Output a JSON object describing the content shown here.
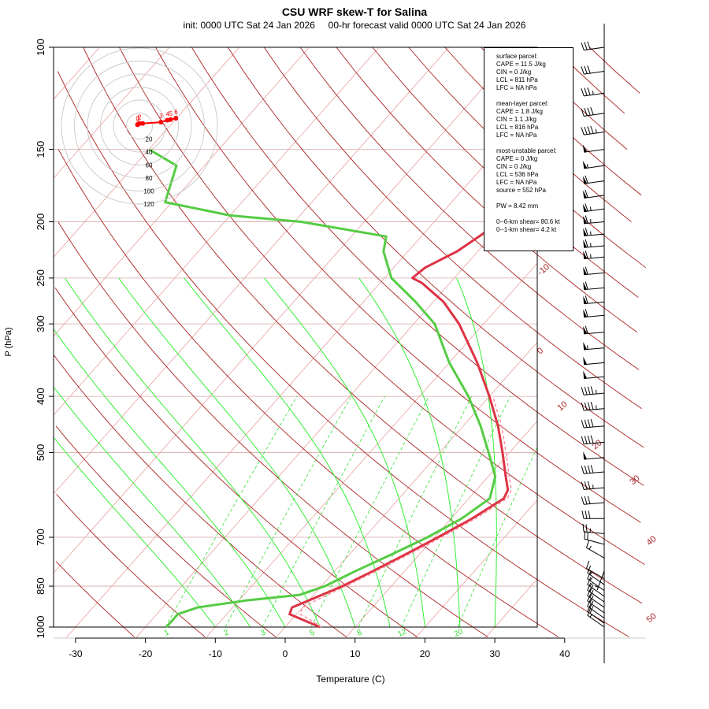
{
  "title": "CSU WRF skew-T for Salina",
  "subtitle": "init: 0000 UTC Sat 24 Jan 2026     00-hr forecast valid 0000 UTC Sat 24 Jan 2026",
  "legend": {
    "surface": [
      "surface parcel:",
      "CAPE = 11.5 J/kg",
      "CIN = 0 J/kg",
      "LCL = 811 hPa",
      "LFC = NA hPa"
    ],
    "mean_layer": [
      "mean-layer parcel:",
      "CAPE = 1.8 J/kg",
      "CIN = 1.1 J/kg",
      "LCL = 816 hPa",
      "LFC = NA hPa"
    ],
    "most_unstable": [
      "most-unstable parcel:",
      "CAPE = 0 J/kg",
      "CIN = 0 J/kg",
      "LCL = 536 hPa",
      "LFC = NA hPa",
      "source = 552 hPa"
    ],
    "pw": "PW =  8.42 mm",
    "shear": [
      "0--6-km shear= 80.6 kt",
      "0--1-km shear= 4.2 kt"
    ]
  },
  "colors": {
    "temperature": "#dd3344",
    "dewpoint": "#55cc44",
    "dry_adiabat": "#aa2222",
    "isotherm": "#e8a0a0",
    "moist_adiabat": "#33ee33",
    "mixing_ratio": "#33dd33",
    "hodograph": "#ff0000"
  },
  "chart_data": {
    "type": "line",
    "chart_kind": "skew-T log-P diagram",
    "xlabel": "Temperature (C)",
    "ylabel": "P (hPa)",
    "x_ticks": [
      -30,
      -20,
      -10,
      0,
      10,
      20,
      30,
      40
    ],
    "y_ticks": [
      100,
      150,
      200,
      250,
      300,
      400,
      500,
      700,
      850,
      1000
    ],
    "ylim": [
      1000,
      100
    ],
    "log_pressure_axis": true,
    "grid": true,
    "legend_placement": "top-right",
    "series": [
      {
        "name": "Temperature",
        "points": [
          [
            1000,
            5.0
          ],
          [
            975,
            2.0
          ],
          [
            950,
            -1.0
          ],
          [
            925,
            -1.5
          ],
          [
            900,
            0.0
          ],
          [
            850,
            3.0
          ],
          [
            800,
            5.5
          ],
          [
            750,
            8.0
          ],
          [
            700,
            10.5
          ],
          [
            650,
            13.0
          ],
          [
            600,
            15.0
          ],
          [
            580,
            14.5
          ],
          [
            550,
            12.5
          ],
          [
            500,
            9.0
          ],
          [
            450,
            5.0
          ],
          [
            400,
            0.0
          ],
          [
            350,
            -6.0
          ],
          [
            300,
            -13.5
          ],
          [
            275,
            -18.5
          ],
          [
            255,
            -24.0
          ],
          [
            250,
            -26.0
          ],
          [
            240,
            -25.5
          ],
          [
            225,
            -23.0
          ],
          [
            200,
            -20.5
          ],
          [
            180,
            -19.5
          ],
          [
            160,
            -19.0
          ],
          [
            150,
            -19.0
          ],
          [
            140,
            -20.0
          ],
          [
            130,
            -22.0
          ],
          [
            120,
            -24.0
          ],
          [
            110,
            -27.0
          ]
        ]
      },
      {
        "name": "Dewpoint",
        "points": [
          [
            1000,
            -17.0
          ],
          [
            975,
            -17.0
          ],
          [
            950,
            -17.0
          ],
          [
            925,
            -15.0
          ],
          [
            900,
            -9.0
          ],
          [
            880,
            -2.0
          ],
          [
            850,
            0.5
          ],
          [
            800,
            3.0
          ],
          [
            750,
            6.0
          ],
          [
            700,
            9.0
          ],
          [
            650,
            11.5
          ],
          [
            600,
            13.0
          ],
          [
            550,
            11.0
          ],
          [
            500,
            7.0
          ],
          [
            450,
            2.5
          ],
          [
            400,
            -3.0
          ],
          [
            350,
            -10.0
          ],
          [
            300,
            -17.0
          ],
          [
            275,
            -22.5
          ],
          [
            250,
            -29.0
          ],
          [
            225,
            -33.5
          ],
          [
            212,
            -35.0
          ],
          [
            200,
            -49.0
          ],
          [
            195,
            -60.0
          ],
          [
            185,
            -71.0
          ],
          [
            160,
            -74.0
          ],
          [
            150,
            -80.0
          ]
        ]
      },
      {
        "name": "Parcel",
        "points": [
          [
            1000,
            5.2
          ],
          [
            975,
            3.0
          ],
          [
            950,
            0.5
          ],
          [
            925,
            0.0
          ],
          [
            900,
            1.0
          ],
          [
            850,
            3.5
          ],
          [
            800,
            6.0
          ],
          [
            750,
            8.5
          ],
          [
            700,
            11.0
          ],
          [
            650,
            13.5
          ],
          [
            600,
            15.5
          ],
          [
            580,
            15.0
          ],
          [
            550,
            13.0
          ],
          [
            500,
            9.5
          ],
          [
            450,
            5.5
          ],
          [
            400,
            0.5
          ]
        ]
      }
    ],
    "isotherm_labels": [
      "-10",
      "0",
      "10",
      "20",
      "30",
      "40",
      "50"
    ],
    "mixing_ratio_labels": [
      "1",
      "2",
      "3",
      "5",
      "8",
      "12",
      "20"
    ],
    "hodograph": {
      "ring_labels": [
        "20",
        "40",
        "60",
        "80",
        "100",
        "120"
      ],
      "point_labels": [
        "0",
        "1",
        "2",
        "3",
        "4",
        "5",
        "6"
      ],
      "points_u_v_kt": [
        [
          -3,
          2
        ],
        [
          -2,
          3
        ],
        [
          0,
          4
        ],
        [
          5,
          4
        ],
        [
          33,
          6
        ],
        [
          43,
          9
        ],
        [
          48,
          10
        ],
        [
          56,
          12
        ]
      ]
    },
    "wind_barbs": [
      {
        "p": 100,
        "dir": 262,
        "spd": 30
      },
      {
        "p": 110,
        "dir": 262,
        "spd": 30
      },
      {
        "p": 120,
        "dir": 262,
        "spd": 35
      },
      {
        "p": 130,
        "dir": 262,
        "spd": 40
      },
      {
        "p": 140,
        "dir": 262,
        "spd": 45
      },
      {
        "p": 150,
        "dir": 262,
        "spd": 50
      },
      {
        "p": 160,
        "dir": 262,
        "spd": 55
      },
      {
        "p": 170,
        "dir": 262,
        "spd": 60
      },
      {
        "p": 180,
        "dir": 262,
        "spd": 60
      },
      {
        "p": 190,
        "dir": 262,
        "spd": 65
      },
      {
        "p": 200,
        "dir": 265,
        "spd": 65
      },
      {
        "p": 210,
        "dir": 265,
        "spd": 65
      },
      {
        "p": 220,
        "dir": 265,
        "spd": 65
      },
      {
        "p": 230,
        "dir": 265,
        "spd": 65
      },
      {
        "p": 245,
        "dir": 265,
        "spd": 60
      },
      {
        "p": 260,
        "dir": 265,
        "spd": 60
      },
      {
        "p": 275,
        "dir": 265,
        "spd": 60
      },
      {
        "p": 290,
        "dir": 265,
        "spd": 60
      },
      {
        "p": 310,
        "dir": 265,
        "spd": 60
      },
      {
        "p": 330,
        "dir": 265,
        "spd": 55
      },
      {
        "p": 350,
        "dir": 265,
        "spd": 50
      },
      {
        "p": 370,
        "dir": 265,
        "spd": 50
      },
      {
        "p": 395,
        "dir": 265,
        "spd": 45
      },
      {
        "p": 420,
        "dir": 265,
        "spd": 45
      },
      {
        "p": 450,
        "dir": 265,
        "spd": 40
      },
      {
        "p": 480,
        "dir": 265,
        "spd": 40
      },
      {
        "p": 510,
        "dir": 265,
        "spd": 50
      },
      {
        "p": 540,
        "dir": 265,
        "spd": 40
      },
      {
        "p": 575,
        "dir": 265,
        "spd": 35
      },
      {
        "p": 610,
        "dir": 265,
        "spd": 30
      },
      {
        "p": 650,
        "dir": 270,
        "spd": 30
      },
      {
        "p": 690,
        "dir": 275,
        "spd": 25
      },
      {
        "p": 720,
        "dir": 285,
        "spd": 20
      },
      {
        "p": 760,
        "dir": 300,
        "spd": 15
      },
      {
        "p": 800,
        "dir": 200,
        "spd": 5
      },
      {
        "p": 825,
        "dir": 300,
        "spd": 10
      },
      {
        "p": 845,
        "dir": 305,
        "spd": 15
      },
      {
        "p": 865,
        "dir": 305,
        "spd": 15
      },
      {
        "p": 885,
        "dir": 305,
        "spd": 15
      },
      {
        "p": 905,
        "dir": 305,
        "spd": 20
      },
      {
        "p": 925,
        "dir": 305,
        "spd": 20
      },
      {
        "p": 945,
        "dir": 305,
        "spd": 20
      },
      {
        "p": 965,
        "dir": 305,
        "spd": 20
      },
      {
        "p": 985,
        "dir": 305,
        "spd": 20
      },
      {
        "p": 1000,
        "dir": 305,
        "spd": 15
      }
    ]
  }
}
